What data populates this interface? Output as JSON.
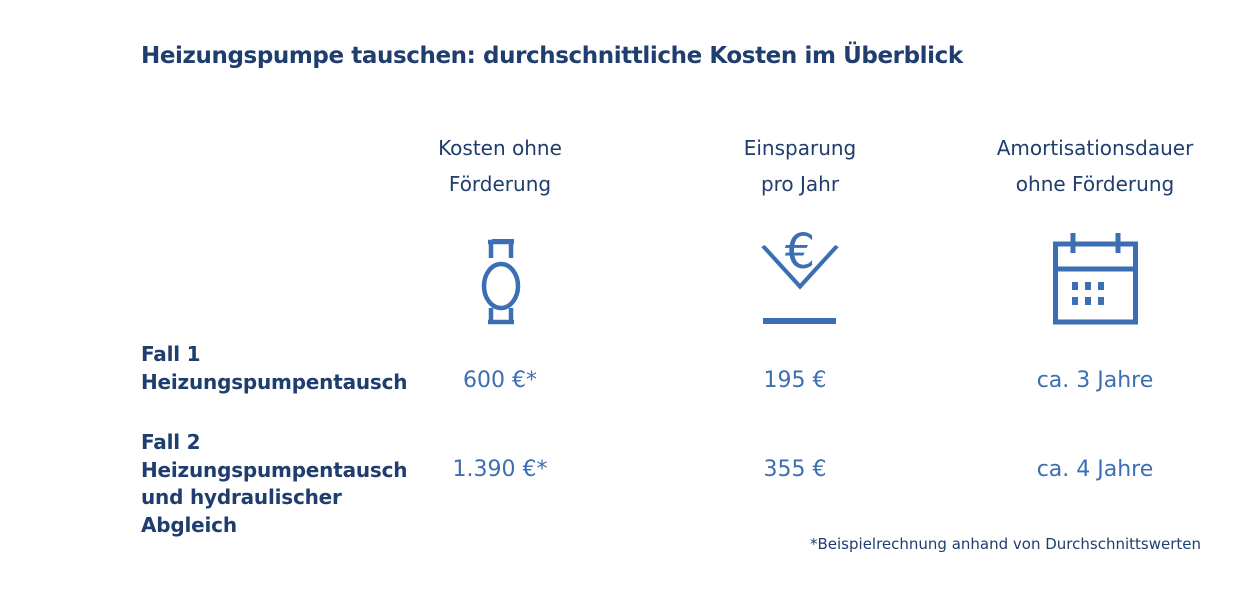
{
  "title": "Heizungspumpe tauschen: durchschnittliche Kosten im Überblick",
  "columns": [
    {
      "line1": "Kosten ohne",
      "line2": "Förderung",
      "icon": "pump-icon"
    },
    {
      "line1": "Einsparung",
      "line2": "pro Jahr",
      "icon": "euro-savings-icon"
    },
    {
      "line1": "Amortisationsdauer",
      "line2": "ohne Förderung",
      "icon": "calendar-icon"
    }
  ],
  "rows": [
    {
      "label": [
        "Fall 1",
        "Heizungspumpentausch"
      ],
      "values": [
        "600 €*",
        "195 €",
        "ca. 3 Jahre"
      ]
    },
    {
      "label": [
        "Fall 2",
        "Heizungspumpentausch",
        "und hydraulischer",
        "Abgleich"
      ],
      "values": [
        "1.390 €*",
        "355 €",
        "ca. 4 Jahre"
      ]
    }
  ],
  "footnote": "*Beispielrechnung anhand von Durchschnittswerten",
  "colors": {
    "heading": "#1f3d6e",
    "accent": "#3c6eb4"
  }
}
